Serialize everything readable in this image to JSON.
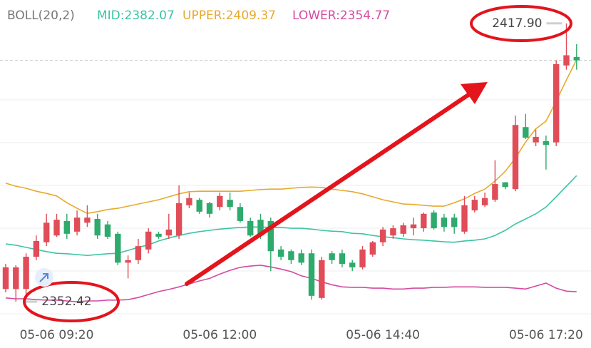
{
  "chart_data": {
    "type": "candlestick",
    "title": "BOLL(20,2)",
    "categories": [
      null,
      null,
      null,
      null,
      null,
      "05-06 09:20",
      null,
      null,
      null,
      null,
      null,
      null,
      null,
      null,
      null,
      null,
      null,
      null,
      null,
      null,
      null,
      "05-06 12:00",
      null,
      null,
      null,
      null,
      null,
      null,
      null,
      null,
      null,
      null,
      null,
      null,
      null,
      null,
      null,
      "05-06 14:40",
      null,
      null,
      null,
      null,
      null,
      null,
      null,
      null,
      null,
      null,
      null,
      null,
      null,
      null,
      null,
      "05-06 17:20",
      null,
      null,
      null
    ],
    "ohlc": {
      "open": [
        2355.4,
        2355.4,
        2355.4,
        2363.0,
        2366.4,
        2368.0,
        2371.4,
        2368.9,
        2371.0,
        2371.9,
        2370.6,
        2368.4,
        2361.6,
        2362.2,
        2364.7,
        2368.4,
        2368.0,
        2368.0,
        2375.1,
        2376.4,
        2375.6,
        2374.7,
        2376.4,
        2374.7,
        2371.4,
        2371.7,
        2371.4,
        2364.7,
        2364.3,
        2363.8,
        2363.8,
        2353.3,
        2363.8,
        2363.8,
        2361.6,
        2360.5,
        2363.5,
        2366.4,
        2368.0,
        2368.4,
        2369.7,
        2369.7,
        2373.4,
        2372.2,
        2372.2,
        2368.9,
        2373.9,
        2375.1,
        2376.4,
        2380.5,
        2378.9,
        2393.5,
        2389.9,
        2390.2,
        2389.9,
        2408.0,
        2410.0
      ],
      "high": [
        2361.3,
        2361.0,
        2363.8,
        2368.0,
        2373.1,
        2373.1,
        2373.1,
        2373.9,
        2375.1,
        2373.1,
        2371.4,
        2368.9,
        2363.3,
        2367.2,
        2369.7,
        2368.9,
        2373.1,
        2379.8,
        2378.1,
        2376.8,
        2375.9,
        2378.1,
        2378.1,
        2375.6,
        2372.2,
        2373.1,
        2372.2,
        2365.5,
        2364.7,
        2364.7,
        2364.7,
        2363.0,
        2364.3,
        2364.7,
        2362.2,
        2365.5,
        2366.7,
        2370.0,
        2370.4,
        2371.0,
        2372.2,
        2373.4,
        2373.9,
        2373.1,
        2373.1,
        2377.3,
        2377.3,
        2378.1,
        2385.7,
        2380.6,
        2396.2,
        2396.6,
        2392.9,
        2391.5,
        2409.2,
        2417.9,
        2413.0
      ],
      "low": [
        2354.6,
        2352.42,
        2353.8,
        2362.2,
        2365.5,
        2367.7,
        2367.2,
        2368.0,
        2370.0,
        2367.2,
        2367.2,
        2361.0,
        2357.9,
        2361.3,
        2363.8,
        2367.2,
        2367.2,
        2367.2,
        2374.4,
        2373.1,
        2372.2,
        2373.9,
        2373.9,
        2371.0,
        2367.7,
        2367.2,
        2359.6,
        2362.2,
        2361.3,
        2361.0,
        2352.9,
        2352.9,
        2361.3,
        2360.5,
        2359.6,
        2360.0,
        2363.0,
        2365.5,
        2367.2,
        2367.7,
        2368.0,
        2368.9,
        2369.4,
        2368.9,
        2368.4,
        2368.4,
        2373.4,
        2374.7,
        2375.9,
        2378.9,
        2378.4,
        2390.7,
        2389.0,
        2383.5,
        2389.0,
        2407.0,
        2407.0
      ],
      "close": [
        2360.5,
        2360.5,
        2363.0,
        2366.7,
        2371.0,
        2371.7,
        2368.4,
        2372.2,
        2372.2,
        2368.0,
        2367.7,
        2361.6,
        2362.2,
        2365.5,
        2368.9,
        2367.7,
        2369.4,
        2375.6,
        2376.8,
        2373.6,
        2373.1,
        2377.3,
        2374.7,
        2371.4,
        2368.0,
        2368.0,
        2364.3,
        2363.0,
        2362.2,
        2361.6,
        2353.8,
        2362.2,
        2362.2,
        2361.3,
        2360.5,
        2364.7,
        2366.4,
        2369.4,
        2369.7,
        2370.4,
        2370.6,
        2373.1,
        2369.7,
        2370.0,
        2370.0,
        2375.1,
        2376.4,
        2376.8,
        2380.1,
        2379.4,
        2394.0,
        2391.0,
        2391.2,
        2389.3,
        2408.3,
        2410.4,
        2409.2
      ]
    },
    "up_color": "#e04c58",
    "down_color": "#2eaa6c",
    "series": [
      {
        "name": "MID:2382.07",
        "color": "#3cc4a2",
        "values": [
          2366.0,
          2365.7,
          2365.2,
          2364.7,
          2364.2,
          2363.8,
          2363.7,
          2363.5,
          2363.3,
          2363.5,
          2363.7,
          2363.8,
          2364.5,
          2365.2,
          2365.8,
          2366.7,
          2367.4,
          2368.0,
          2368.5,
          2368.9,
          2369.2,
          2369.5,
          2369.7,
          2369.9,
          2370.0,
          2370.0,
          2369.9,
          2369.9,
          2369.7,
          2369.7,
          2369.5,
          2369.2,
          2369.0,
          2368.9,
          2368.5,
          2368.4,
          2368.0,
          2367.7,
          2367.5,
          2367.2,
          2367.0,
          2366.9,
          2366.7,
          2366.5,
          2366.4,
          2366.7,
          2366.9,
          2367.2,
          2368.0,
          2369.2,
          2370.7,
          2371.9,
          2373.1,
          2374.7,
          2377.1,
          2379.6,
          2382.07
        ]
      },
      {
        "name": "UPPER:2409.37",
        "color": "#e8a92c",
        "values": [
          2380.3,
          2379.6,
          2379.1,
          2378.4,
          2377.9,
          2377.3,
          2375.7,
          2374.4,
          2373.2,
          2373.6,
          2374.1,
          2374.4,
          2374.9,
          2375.4,
          2375.9,
          2376.4,
          2377.1,
          2377.8,
          2378.3,
          2378.4,
          2378.4,
          2378.4,
          2378.4,
          2378.4,
          2378.6,
          2378.8,
          2378.9,
          2378.9,
          2379.1,
          2379.3,
          2379.4,
          2379.3,
          2378.9,
          2378.6,
          2378.3,
          2377.8,
          2377.1,
          2376.4,
          2375.9,
          2375.4,
          2375.3,
          2375.1,
          2374.9,
          2374.9,
          2375.7,
          2376.6,
          2377.9,
          2378.9,
          2380.8,
          2383.1,
          2386.2,
          2390.0,
          2393.1,
          2394.9,
          2399.6,
          2404.6,
          2409.37
        ]
      },
      {
        "name": "LOWER:2354.77",
        "color": "#d44aa2",
        "values": [
          2353.3,
          2353.1,
          2353.1,
          2352.9,
          2352.8,
          2352.8,
          2352.6,
          2352.4,
          2352.6,
          2352.6,
          2352.8,
          2352.8,
          2352.9,
          2353.4,
          2354.1,
          2354.8,
          2355.3,
          2355.9,
          2356.6,
          2357.3,
          2357.9,
          2358.9,
          2359.8,
          2360.5,
          2360.8,
          2361.0,
          2360.6,
          2360.1,
          2359.5,
          2358.5,
          2357.9,
          2357.1,
          2356.4,
          2355.9,
          2355.8,
          2355.8,
          2355.6,
          2355.6,
          2355.4,
          2355.4,
          2355.6,
          2355.6,
          2355.8,
          2355.8,
          2355.9,
          2355.9,
          2355.9,
          2355.8,
          2355.8,
          2355.8,
          2355.6,
          2355.4,
          2356.1,
          2356.8,
          2355.6,
          2354.9,
          2354.77
        ]
      }
    ],
    "annotations": [
      {
        "value": 2417.9,
        "label": "2417.90"
      },
      {
        "value": 2352.42,
        "label": "2352.42"
      }
    ],
    "ylim": [
      2347.9,
      2423.4
    ],
    "grid": true
  }
}
